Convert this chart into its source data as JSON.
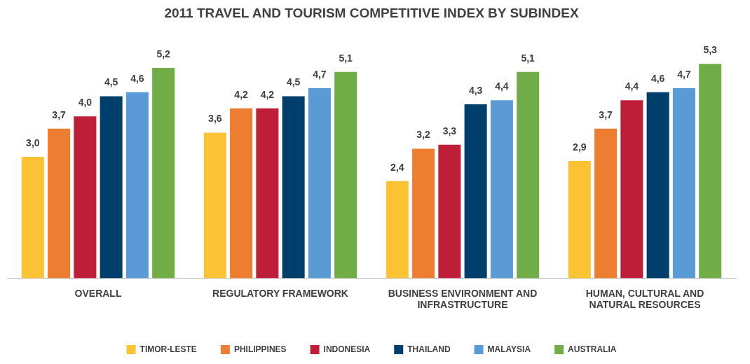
{
  "chart_data": {
    "type": "bar",
    "title": "2011 TRAVEL AND TOURISM COMPETITIVE INDEX BY SUBINDEX",
    "categories": [
      "OVERALL",
      "REGULATORY FRAMEWORK",
      "BUSINESS ENVIRONMENT AND INFRASTRUCTURE",
      "HUMAN, CULTURAL AND NATURAL RESOURCES"
    ],
    "tick_labels": "x",
    "legend": "bottom",
    "grid": false,
    "series": [
      {
        "name": "TIMOR-LESTE",
        "color": "#fbc234",
        "values": [
          3.0,
          3.6,
          2.4,
          2.9
        ],
        "value_labels": [
          "3,0",
          "3,6",
          "2,4",
          "2,9"
        ]
      },
      {
        "name": "PHILIPPINES",
        "color": "#ed7d31",
        "values": [
          3.7,
          4.2,
          3.2,
          3.7
        ],
        "value_labels": [
          "3,7",
          "4,2",
          "3,2",
          "3,7"
        ]
      },
      {
        "name": "INDONESIA",
        "color": "#be1e37",
        "values": [
          4.0,
          4.2,
          3.3,
          4.4
        ],
        "value_labels": [
          "4,0",
          "4,2",
          "3,3",
          "4,4"
        ]
      },
      {
        "name": "THAILAND",
        "color": "#003f6b",
        "values": [
          4.5,
          4.5,
          4.3,
          4.6
        ],
        "value_labels": [
          "4,5",
          "4,5",
          "4,3",
          "4,6"
        ]
      },
      {
        "name": "MALAYSIA",
        "color": "#5b9bd5",
        "values": [
          4.6,
          4.7,
          4.4,
          4.7
        ],
        "value_labels": [
          "4,6",
          "4,7",
          "4,4",
          "4,7"
        ]
      },
      {
        "name": "AUSTRALIA",
        "color": "#70ad47",
        "values": [
          5.2,
          5.1,
          5.1,
          5.3
        ],
        "value_labels": [
          "5,2",
          "5,1",
          "5,1",
          "5,3"
        ]
      }
    ]
  }
}
